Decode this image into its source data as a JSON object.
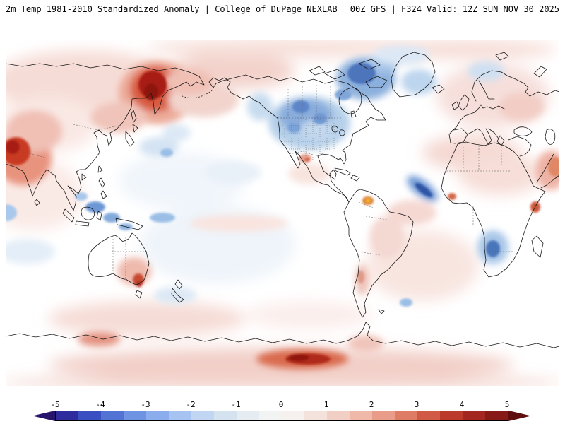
{
  "header": {
    "product_title": "2m Temp 1981-2010 Standardized Anomaly | College of DuPage NEXLAB",
    "model_info": "00Z GFS | F324 Valid: 12Z SUN NOV 30 2025"
  },
  "chart_data": {
    "type": "heatmap",
    "title": "2m Temp 1981-2010 Standardized Anomaly",
    "source": "College of DuPage NEXLAB",
    "model": "GFS",
    "cycle": "00Z",
    "forecast_hour": "F324",
    "valid_time": "12Z SUN NOV 30 2025",
    "projection": "global cylindrical, Pacific-centered",
    "variable": "2 m temperature standardized anomaly versus 1981-2010 climatology",
    "colorbar": {
      "ticks": [
        -5,
        -4,
        -3,
        -2,
        -1,
        0,
        1,
        2,
        3,
        4,
        5
      ],
      "interval": 0.5,
      "colors": [
        "#27156b",
        "#2f2d9e",
        "#3a50c2",
        "#5273d3",
        "#6e93e3",
        "#8badee",
        "#a7c3f2",
        "#c0d6f2",
        "#d5e3f1",
        "#e6edf2",
        "#f2f4f3",
        "#f6f1ef",
        "#f4e2dc",
        "#f2cfc5",
        "#efb8a9",
        "#e99c89",
        "#df7c66",
        "#d05a46",
        "#bc3a2c",
        "#a32620",
        "#871a16",
        "#5f0e10"
      ]
    },
    "notable_features": [
      {
        "region": "Northeast Siberia / Chukotka / Kamchatka",
        "anomaly": "strong warm, +3 to +5"
      },
      {
        "region": "Western and central Canada / northern US Plains",
        "anomaly": "cold, -1 to -3"
      },
      {
        "region": "Canadian Arctic and Baffin Bay",
        "anomaly": "cold, -2 to -3"
      },
      {
        "region": "India and vicinity",
        "anomaly": "warm, +2 to +4"
      },
      {
        "region": "Central North Atlantic",
        "anomaly": "narrow cold streak, -3 to -4"
      },
      {
        "region": "Northern Venezuela",
        "anomaly": "small isolated warm maximum, +4 to +5"
      },
      {
        "region": "Tropical west Pacific",
        "anomaly": "scattered cold patches, -2 to -3"
      },
      {
        "region": "Southeast Australia / Tasmania",
        "anomaly": "warm spot, +3 to +4"
      },
      {
        "region": "Southern Africa interior",
        "anomaly": "cold spot, about -3"
      },
      {
        "region": "Antarctic coast near 150W-90E sector",
        "anomaly": "strong warm, +4 to +5"
      },
      {
        "region": "Most remaining areas",
        "anomaly": "weak anomalies between -1 and +1"
      }
    ]
  }
}
